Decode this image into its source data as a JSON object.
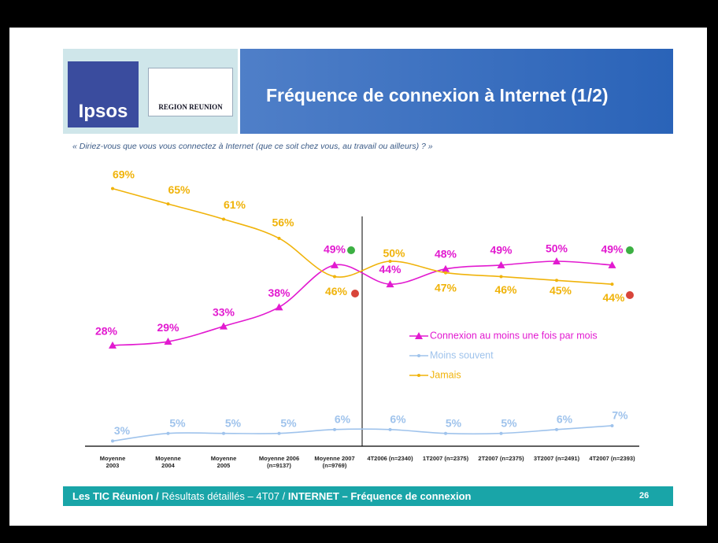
{
  "header": {
    "title": "Fréquence de connexion à Internet (1/2)",
    "logos": [
      "Ipsos",
      "REGION REUNION"
    ]
  },
  "question": "« Diriez-vous que vous vous connectez à Internet (que ce soit chez vous, au travail ou ailleurs) ? »",
  "chart_data": {
    "type": "line",
    "categories": [
      "Moyenne\n2003",
      "Moyenne\n2004",
      "Moyenne\n2005",
      "Moyenne 2006\n(n=9137)",
      "Moyenne 2007\n(n=9769)",
      "4T2006 (n=2340)",
      "1T2007 (n=2375)",
      "2T2007 (n=2375)",
      "3T2007 (n=2491)",
      "4T2007 (n=2393)"
    ],
    "series": [
      {
        "name": "Connexion au moins une fois par mois",
        "color": "#e21ad0",
        "marker": "triangle",
        "values": [
          28,
          29,
          33,
          38,
          49,
          44,
          48,
          49,
          50,
          49
        ],
        "value_labels": [
          "28%",
          "29%",
          "33%",
          "38%",
          "49%",
          "44%",
          "48%",
          "49%",
          "50%",
          "49%"
        ]
      },
      {
        "name": "Moins souvent",
        "color": "#9fc3ec",
        "marker": "dot",
        "values": [
          3,
          5,
          5,
          5,
          6,
          6,
          5,
          5,
          6,
          7
        ],
        "value_labels": [
          "3%",
          "5%",
          "5%",
          "5%",
          "6%",
          "6%",
          "5%",
          "5%",
          "6%",
          "7%"
        ]
      },
      {
        "name": "Jamais",
        "color": "#f0b30a",
        "marker": "dot",
        "values": [
          69,
          65,
          61,
          56,
          46,
          50,
          47,
          46,
          45,
          44
        ],
        "value_labels": [
          "69%",
          "65%",
          "61%",
          "56%",
          "46%",
          "50%",
          "47%",
          "46%",
          "45%",
          "44%"
        ]
      }
    ],
    "legend": true
  },
  "footer": {
    "brand": "Les TIC Réunion /",
    "section": "Résultats détaillés – 4T07 /",
    "topic": "INTERNET – Fréquence de connexion",
    "page": "26"
  }
}
